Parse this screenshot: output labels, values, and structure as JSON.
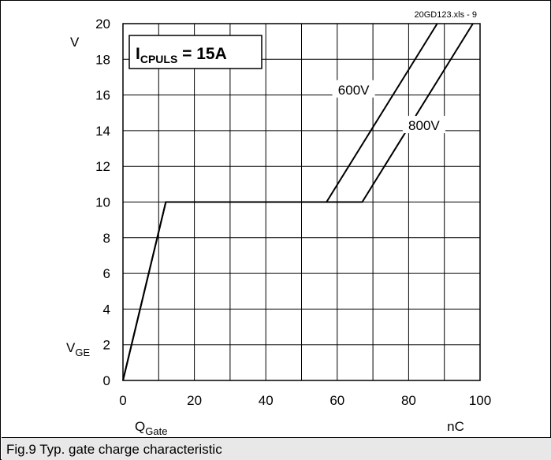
{
  "chart_data": {
    "type": "line",
    "title": "",
    "file_label": "20GD123.xls - 9",
    "xlabel": "Q",
    "xlabel_sub": "Gate",
    "xunit": "nC",
    "ylabel": "V",
    "ylabel_sub": "GE",
    "yunit": "V",
    "xlim": [
      0,
      100
    ],
    "ylim": [
      0,
      20
    ],
    "xticks": [
      0,
      20,
      40,
      60,
      80,
      100
    ],
    "yticks": [
      0,
      2,
      4,
      6,
      8,
      10,
      12,
      14,
      16,
      18,
      20
    ],
    "x_minor_step": 10,
    "grid": true,
    "annotation": {
      "main": "I",
      "sub": "CPULS",
      "rest": " = 15A"
    },
    "series": [
      {
        "name": "600V",
        "x": [
          0,
          12,
          57,
          88
        ],
        "y": [
          0,
          10,
          10,
          20
        ]
      },
      {
        "name": "800V",
        "x": [
          0,
          12,
          67,
          98
        ],
        "y": [
          0,
          10,
          10,
          20
        ]
      }
    ]
  },
  "caption": "Fig.9 Typ. gate charge characteristic"
}
